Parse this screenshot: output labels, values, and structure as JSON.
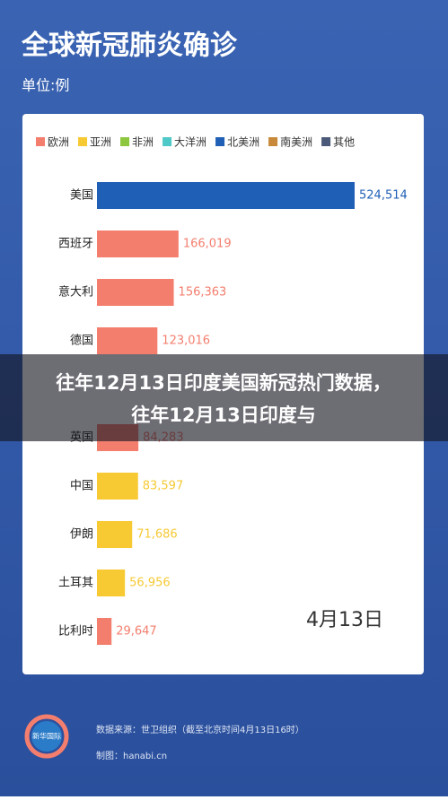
{
  "header": {
    "title": "全球新冠肺炎确诊",
    "subtitle": "单位:例"
  },
  "chart_data": {
    "type": "bar",
    "orientation": "horizontal",
    "legend": [
      {
        "name": "欧洲",
        "color": "#f47e6e"
      },
      {
        "name": "亚洲",
        "color": "#f7c933"
      },
      {
        "name": "非洲",
        "color": "#8dc63f"
      },
      {
        "name": "大洋洲",
        "color": "#4fc9c8"
      },
      {
        "name": "北美洲",
        "color": "#1f5fb5"
      },
      {
        "name": "南美洲",
        "color": "#c8893a"
      },
      {
        "name": "其他",
        "color": "#4b5a78"
      }
    ],
    "categories": [
      "美国",
      "西班牙",
      "意大利",
      "德国",
      "英国",
      "中国",
      "伊朗",
      "土耳其",
      "比利时"
    ],
    "values": [
      524514,
      166019,
      156363,
      123016,
      84283,
      83597,
      71686,
      56956,
      29647
    ],
    "value_labels": [
      "524,514",
      "166,019",
      "156,363",
      "123,016",
      "84,283",
      "83,597",
      "71,686",
      "56,956",
      "29,647"
    ],
    "bar_colors": [
      "#1f5fb5",
      "#f47e6e",
      "#f47e6e",
      "#f47e6e",
      "#f47e6e",
      "#f7c933",
      "#f7c933",
      "#f7c933",
      "#f47e6e"
    ],
    "annotation": "4月13日"
  },
  "footer": {
    "logo": "新华国际",
    "source": "数据来源：世卫组织（截至北京时间4月13日16时）",
    "credit": "制图：hanabi.cn"
  },
  "overlay": {
    "lines": [
      "往年12月13日印度美国新冠热门数据，",
      "往年12月13日印度与"
    ]
  }
}
